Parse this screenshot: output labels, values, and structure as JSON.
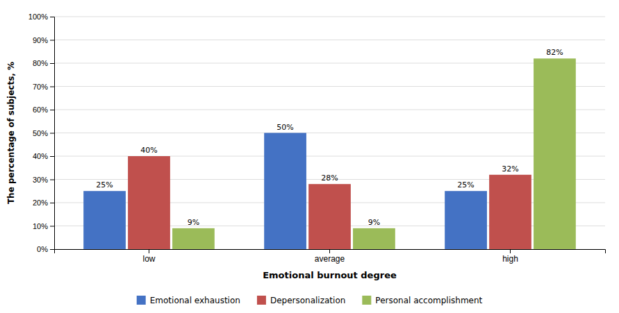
{
  "chart_data": {
    "type": "bar",
    "categories": [
      "low",
      "average",
      "high"
    ],
    "series": [
      {
        "name": "Emotional exhaustion",
        "values": [
          25,
          50,
          25
        ],
        "value_labels": [
          "25%",
          "50%",
          "25%"
        ],
        "color": "#4472C4"
      },
      {
        "name": "Depersonalization",
        "values": [
          40,
          28,
          32
        ],
        "value_labels": [
          "40%",
          "28%",
          "32%"
        ],
        "color": "#C0504D"
      },
      {
        "name": "Personal accomplishment",
        "values": [
          9,
          9,
          82
        ],
        "value_labels": [
          "9%",
          "9%",
          "82%"
        ],
        "color": "#9BBB59"
      }
    ],
    "xlabel": "Emotional burnout degree",
    "ylabel": "The percentage of subjects, %",
    "ylim": [
      0,
      100
    ],
    "yticks": [
      {
        "value": 0,
        "label": "0%"
      },
      {
        "value": 10,
        "label": "10%"
      },
      {
        "value": 20,
        "label": "20%"
      },
      {
        "value": 30,
        "label": "30%"
      },
      {
        "value": 40,
        "label": "40%"
      },
      {
        "value": 50,
        "label": "50%"
      },
      {
        "value": 60,
        "label": "60%"
      },
      {
        "value": 70,
        "label": "70%"
      },
      {
        "value": 80,
        "label": "80%"
      },
      {
        "value": 90,
        "label": "90%"
      },
      {
        "value": 100,
        "label": "100%"
      }
    ],
    "grid": true,
    "data_labels": true,
    "legend": "bottom"
  }
}
